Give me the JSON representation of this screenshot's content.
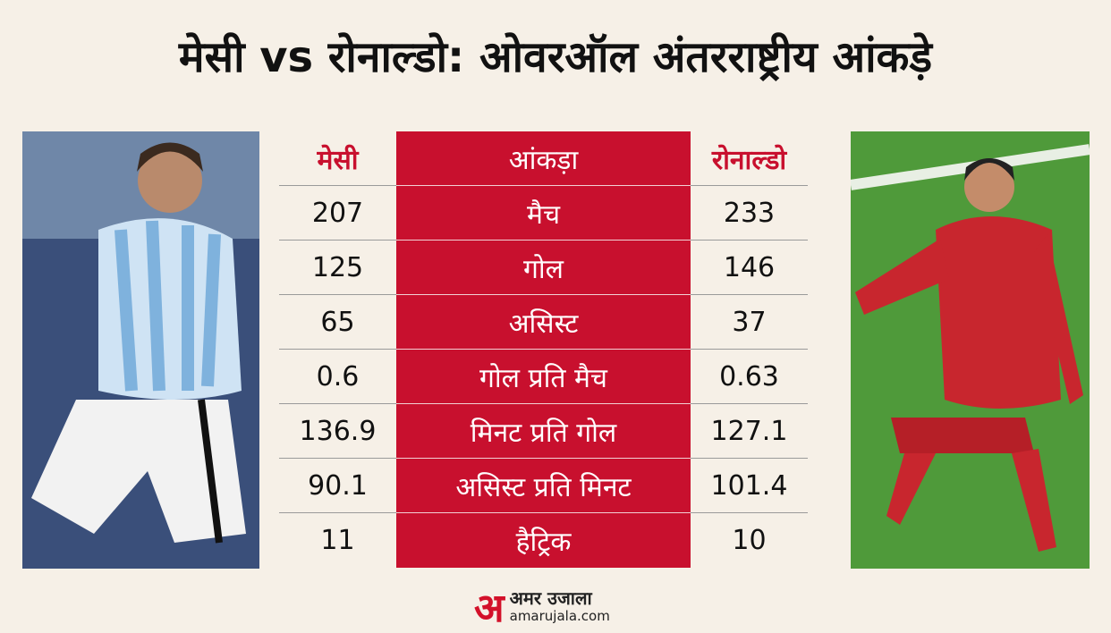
{
  "header": {
    "title": "मेसी vs रोनाल्डो: ओवरऑल अंतरराष्ट्रीय आंकड़े"
  },
  "table": {
    "headers": [
      "मेसी",
      "आंकड़ा",
      "रोनाल्डो"
    ],
    "rows": [
      [
        207,
        "मैच",
        233
      ],
      [
        125,
        "गोल",
        146
      ],
      [
        65,
        "असिस्ट",
        37
      ],
      [
        0.6,
        "गोल प्रति मैच",
        0.63
      ],
      [
        136.9,
        "मिनट प्रति गोल",
        127.1
      ],
      [
        90.1,
        "असिस्ट प्रति मिनट",
        101.4
      ],
      [
        11,
        "हैट्रिक",
        10
      ]
    ]
  },
  "footer": {
    "logo_mark": "अ",
    "brand": "अमर उजाला",
    "site": "amarujala.com"
  }
}
